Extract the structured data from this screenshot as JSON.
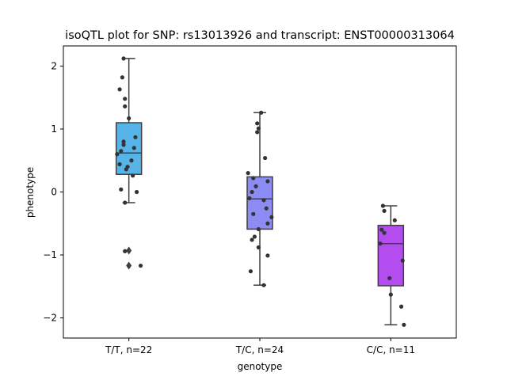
{
  "chart_data": {
    "type": "box",
    "title": "isoQTL plot for SNP: rs13013926 and transcript: ENST00000313064",
    "xlabel": "genotype",
    "ylabel": "phenotype",
    "ylim": [
      -2.32,
      2.32
    ],
    "yticks": [
      {
        "value": 2,
        "label": "2"
      },
      {
        "value": 1,
        "label": "1"
      },
      {
        "value": 0,
        "label": "0"
      },
      {
        "value": -1,
        "label": "−1"
      },
      {
        "value": -2,
        "label": "−2"
      }
    ],
    "categories": [
      "T/T, n=22",
      "T/C, n=24",
      "C/C, n=11"
    ],
    "boxes": [
      {
        "name": "T/T, n=22",
        "color": "#56b4e9",
        "q1": 0.28,
        "median": 0.62,
        "q3": 1.1,
        "whisker_low": -0.17,
        "whisker_high": 2.12,
        "outliers": [
          -0.93,
          -1.17
        ]
      },
      {
        "name": "T/C, n=24",
        "color": "#8c8cf4",
        "q1": -0.59,
        "median": -0.11,
        "q3": 0.24,
        "whisker_low": -1.48,
        "whisker_high": 1.26,
        "outliers": []
      },
      {
        "name": "C/C, n=11",
        "color": "#b34df0",
        "q1": -1.49,
        "median": -0.82,
        "q3": -0.53,
        "whisker_low": -2.11,
        "whisker_high": -0.22,
        "outliers": []
      }
    ],
    "points": [
      {
        "group": 0,
        "x": -0.04,
        "y": 2.12
      },
      {
        "group": 0,
        "x": -0.05,
        "y": 1.82
      },
      {
        "group": 0,
        "x": -0.07,
        "y": 1.63
      },
      {
        "group": 0,
        "x": -0.03,
        "y": 1.48
      },
      {
        "group": 0,
        "x": -0.03,
        "y": 1.36
      },
      {
        "group": 0,
        "x": 0.0,
        "y": 1.17
      },
      {
        "group": 0,
        "x": 0.05,
        "y": 0.87
      },
      {
        "group": 0,
        "x": -0.04,
        "y": 0.8
      },
      {
        "group": 0,
        "x": -0.04,
        "y": 0.75
      },
      {
        "group": 0,
        "x": 0.04,
        "y": 0.7
      },
      {
        "group": 0,
        "x": -0.06,
        "y": 0.65
      },
      {
        "group": 0,
        "x": -0.09,
        "y": 0.6
      },
      {
        "group": 0,
        "x": 0.02,
        "y": 0.5
      },
      {
        "group": 0,
        "x": -0.07,
        "y": 0.44
      },
      {
        "group": 0,
        "x": -0.01,
        "y": 0.4
      },
      {
        "group": 0,
        "x": -0.02,
        "y": 0.36
      },
      {
        "group": 0,
        "x": 0.03,
        "y": 0.26
      },
      {
        "group": 0,
        "x": -0.06,
        "y": 0.04
      },
      {
        "group": 0,
        "x": 0.06,
        "y": 0.0
      },
      {
        "group": 0,
        "x": -0.03,
        "y": -0.17
      },
      {
        "group": 0,
        "x": -0.03,
        "y": -0.94
      },
      {
        "group": 0,
        "x": 0.09,
        "y": -1.17
      },
      {
        "group": 1,
        "x": 0.01,
        "y": 1.26
      },
      {
        "group": 1,
        "x": -0.02,
        "y": 1.09
      },
      {
        "group": 1,
        "x": -0.01,
        "y": 1.01
      },
      {
        "group": 1,
        "x": -0.02,
        "y": 0.95
      },
      {
        "group": 1,
        "x": 0.04,
        "y": 0.54
      },
      {
        "group": 1,
        "x": -0.09,
        "y": 0.3
      },
      {
        "group": 1,
        "x": -0.05,
        "y": 0.22
      },
      {
        "group": 1,
        "x": 0.06,
        "y": 0.17
      },
      {
        "group": 1,
        "x": -0.03,
        "y": 0.09
      },
      {
        "group": 1,
        "x": -0.06,
        "y": 0.0
      },
      {
        "group": 1,
        "x": -0.08,
        "y": -0.1
      },
      {
        "group": 1,
        "x": 0.03,
        "y": -0.13
      },
      {
        "group": 1,
        "x": 0.05,
        "y": -0.26
      },
      {
        "group": 1,
        "x": -0.05,
        "y": -0.35
      },
      {
        "group": 1,
        "x": 0.09,
        "y": -0.4
      },
      {
        "group": 1,
        "x": 0.06,
        "y": -0.5
      },
      {
        "group": 1,
        "x": -0.01,
        "y": -0.59
      },
      {
        "group": 1,
        "x": -0.04,
        "y": -0.71
      },
      {
        "group": 1,
        "x": -0.06,
        "y": -0.76
      },
      {
        "group": 1,
        "x": -0.01,
        "y": -0.88
      },
      {
        "group": 1,
        "x": 0.06,
        "y": -1.01
      },
      {
        "group": 1,
        "x": -0.07,
        "y": -1.26
      },
      {
        "group": 1,
        "x": 0.03,
        "y": -1.48
      },
      {
        "group": 2,
        "x": -0.06,
        "y": -0.22
      },
      {
        "group": 2,
        "x": -0.05,
        "y": -0.3
      },
      {
        "group": 2,
        "x": 0.03,
        "y": -0.45
      },
      {
        "group": 2,
        "x": -0.07,
        "y": -0.6
      },
      {
        "group": 2,
        "x": -0.05,
        "y": -0.65
      },
      {
        "group": 2,
        "x": -0.08,
        "y": -0.82
      },
      {
        "group": 2,
        "x": 0.09,
        "y": -1.09
      },
      {
        "group": 2,
        "x": -0.01,
        "y": -1.37
      },
      {
        "group": 2,
        "x": 0.0,
        "y": -1.63
      },
      {
        "group": 2,
        "x": 0.08,
        "y": -1.82
      },
      {
        "group": 2,
        "x": 0.1,
        "y": -2.11
      }
    ]
  }
}
